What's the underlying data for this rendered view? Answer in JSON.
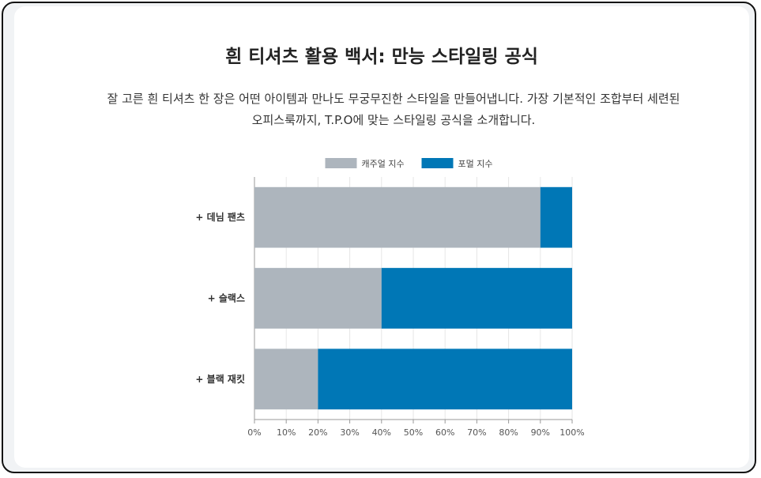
{
  "header": {
    "title": "흰 티셔츠 활용 백서: 만능 스타일링 공식",
    "description_line1": "잘 고른 흰 티셔츠 한 장은 어떤 아이템과 만나도 무궁무진한 스타일을 만들어냅니다. 가장 기본적인 조합부터 세련된",
    "description_line2": "오피스룩까지, T.P.O에 맞는 스타일링 공식을 소개합니다."
  },
  "colors": {
    "casual": "#adb5bd",
    "formal": "#0077b6"
  },
  "chart_data": {
    "type": "bar",
    "orientation": "horizontal",
    "stacked": true,
    "categories": [
      "+ 데님 팬츠",
      "+ 슬랙스",
      "+ 블랙 재킷"
    ],
    "series": [
      {
        "name": "캐주얼 지수",
        "values": [
          90,
          40,
          20
        ],
        "color": "#adb5bd"
      },
      {
        "name": "포멀 지수",
        "values": [
          10,
          60,
          80
        ],
        "color": "#0077b6"
      }
    ],
    "xlim": [
      0,
      100
    ],
    "xticks": [
      "0%",
      "10%",
      "20%",
      "30%",
      "40%",
      "50%",
      "60%",
      "70%",
      "80%",
      "90%",
      "100%"
    ],
    "grid": true,
    "legend": "top-center"
  }
}
